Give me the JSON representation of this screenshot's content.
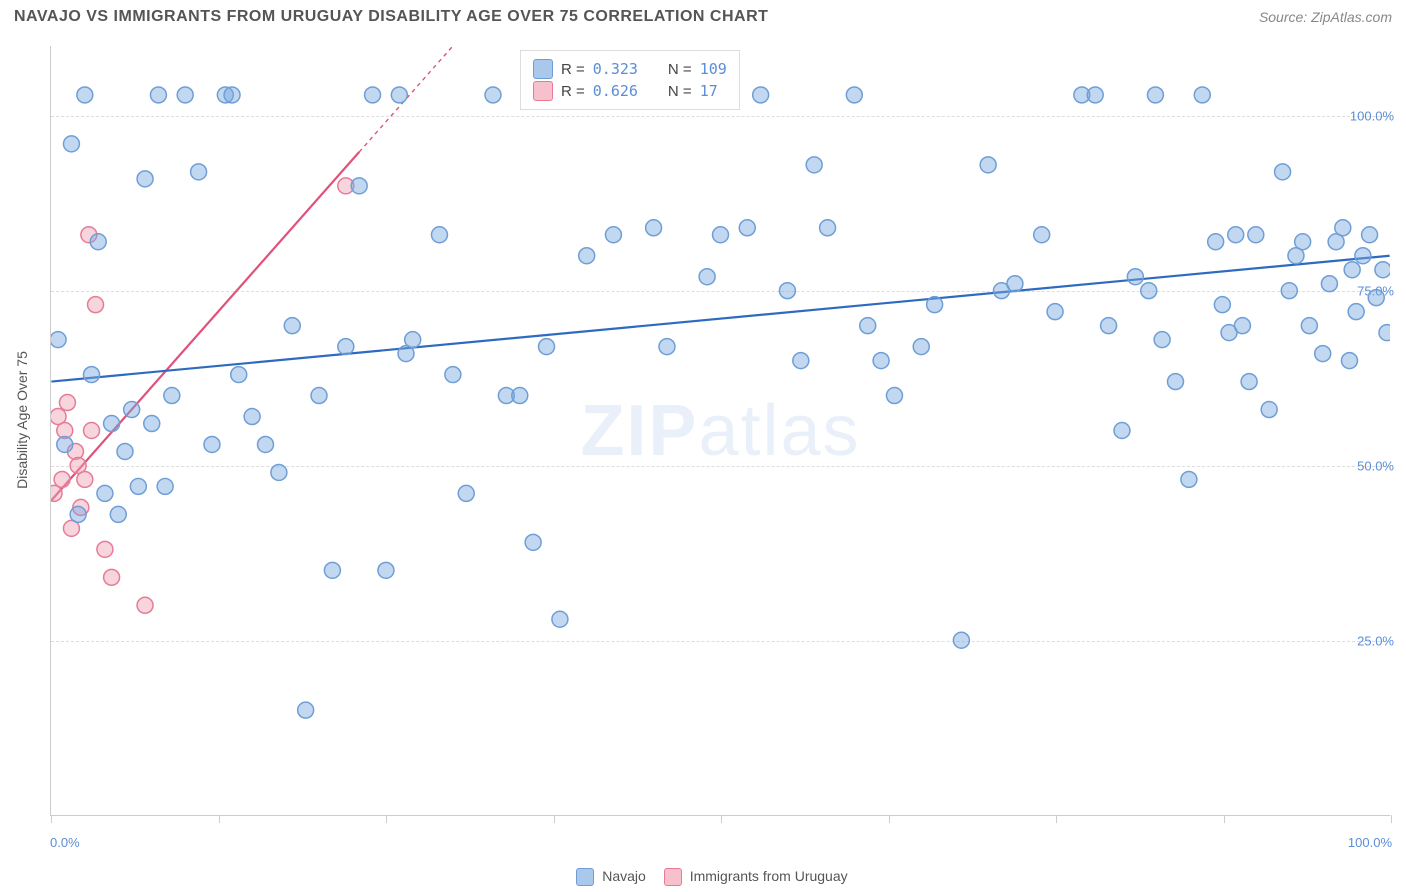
{
  "header": {
    "title": "NAVAJO VS IMMIGRANTS FROM URUGUAY DISABILITY AGE OVER 75 CORRELATION CHART",
    "source": "Source: ZipAtlas.com"
  },
  "axis": {
    "y_title": "Disability Age Over 75",
    "x_min": 0,
    "x_max": 100,
    "y_min": 0,
    "y_max": 110,
    "y_ticks": [
      25,
      50,
      75,
      100
    ],
    "y_tick_labels": [
      "25.0%",
      "50.0%",
      "75.0%",
      "100.0%"
    ],
    "x_ticks": [
      0,
      12.5,
      25,
      37.5,
      50,
      62.5,
      75,
      87.5,
      100
    ],
    "x_end_labels": {
      "left": "0.0%",
      "right": "100.0%"
    }
  },
  "styling": {
    "background": "#ffffff",
    "grid_color": "#dddddd",
    "axis_color": "#cccccc",
    "tick_label_color": "#5b8dd6",
    "title_color": "#555555",
    "marker_radius": 8,
    "marker_stroke_width": 1.5,
    "line_width": 2.2
  },
  "watermark": {
    "text_bold": "ZIP",
    "text_thin": "atlas"
  },
  "legend_top": {
    "rows": [
      {
        "swatch_fill": "#a9c8ec",
        "swatch_stroke": "#6f9ed6",
        "r_label": "R =",
        "r_value": "0.323",
        "n_label": "N =",
        "n_value": "109"
      },
      {
        "swatch_fill": "#f6c0cc",
        "swatch_stroke": "#e77b97",
        "r_label": "R =",
        "r_value": "0.626",
        "n_label": "N =",
        "n_value": " 17"
      }
    ]
  },
  "bottom_legend": {
    "items": [
      {
        "swatch_fill": "#a9c8ec",
        "swatch_stroke": "#6f9ed6",
        "label": "Navajo"
      },
      {
        "swatch_fill": "#f6c0cc",
        "swatch_stroke": "#e77b97",
        "label": "Immigrants from Uruguay"
      }
    ]
  },
  "series": {
    "navajo": {
      "color_fill": "rgba(120,168,224,0.45)",
      "color_stroke": "#6f9ed6",
      "trend": {
        "x1": 0,
        "y1": 62,
        "x2": 100,
        "y2": 80,
        "color": "#2e6bc0"
      },
      "points": [
        [
          0.5,
          68
        ],
        [
          1,
          53
        ],
        [
          1.5,
          96
        ],
        [
          2,
          43
        ],
        [
          2.5,
          103
        ],
        [
          3,
          63
        ],
        [
          3.5,
          82
        ],
        [
          4,
          46
        ],
        [
          4.5,
          56
        ],
        [
          5,
          43
        ],
        [
          5.5,
          52
        ],
        [
          6,
          58
        ],
        [
          6.5,
          47
        ],
        [
          7,
          91
        ],
        [
          7.5,
          56
        ],
        [
          8,
          103
        ],
        [
          8.5,
          47
        ],
        [
          9,
          60
        ],
        [
          10,
          103
        ],
        [
          11,
          92
        ],
        [
          12,
          53
        ],
        [
          13,
          103
        ],
        [
          13.5,
          103
        ],
        [
          14,
          63
        ],
        [
          15,
          57
        ],
        [
          16,
          53
        ],
        [
          17,
          49
        ],
        [
          18,
          70
        ],
        [
          19,
          15
        ],
        [
          20,
          60
        ],
        [
          21,
          35
        ],
        [
          22,
          67
        ],
        [
          23,
          90
        ],
        [
          24,
          103
        ],
        [
          25,
          35
        ],
        [
          26,
          103
        ],
        [
          26.5,
          66
        ],
        [
          27,
          68
        ],
        [
          29,
          83
        ],
        [
          30,
          63
        ],
        [
          31,
          46
        ],
        [
          33,
          103
        ],
        [
          34,
          60
        ],
        [
          35,
          60
        ],
        [
          36,
          39
        ],
        [
          37,
          67
        ],
        [
          38,
          28
        ],
        [
          40,
          80
        ],
        [
          42,
          83
        ],
        [
          43,
          103
        ],
        [
          45,
          84
        ],
        [
          46,
          67
        ],
        [
          48,
          103
        ],
        [
          49,
          77
        ],
        [
          50,
          83
        ],
        [
          52,
          84
        ],
        [
          53,
          103
        ],
        [
          55,
          75
        ],
        [
          56,
          65
        ],
        [
          57,
          93
        ],
        [
          58,
          84
        ],
        [
          60,
          103
        ],
        [
          61,
          70
        ],
        [
          62,
          65
        ],
        [
          63,
          60
        ],
        [
          65,
          67
        ],
        [
          66,
          73
        ],
        [
          68,
          25
        ],
        [
          70,
          93
        ],
        [
          71,
          75
        ],
        [
          72,
          76
        ],
        [
          74,
          83
        ],
        [
          75,
          72
        ],
        [
          77,
          103
        ],
        [
          78,
          103
        ],
        [
          80,
          55
        ],
        [
          81,
          77
        ],
        [
          82,
          75
        ],
        [
          82.5,
          103
        ],
        [
          83,
          68
        ],
        [
          84,
          62
        ],
        [
          85,
          48
        ],
        [
          86,
          103
        ],
        [
          87,
          82
        ],
        [
          87.5,
          73
        ],
        [
          88,
          69
        ],
        [
          89,
          70
        ],
        [
          89.5,
          62
        ],
        [
          90,
          83
        ],
        [
          91,
          58
        ],
        [
          92,
          92
        ],
        [
          92.5,
          75
        ],
        [
          93,
          80
        ],
        [
          94,
          70
        ],
        [
          95,
          66
        ],
        [
          95.5,
          76
        ],
        [
          96,
          82
        ],
        [
          96.5,
          84
        ],
        [
          97,
          65
        ],
        [
          97.5,
          72
        ],
        [
          98,
          80
        ],
        [
          98.5,
          83
        ],
        [
          99,
          74
        ],
        [
          99.5,
          78
        ],
        [
          99.8,
          69
        ],
        [
          97.2,
          78
        ],
        [
          93.5,
          82
        ],
        [
          88.5,
          83
        ],
        [
          79,
          70
        ]
      ]
    },
    "uruguay": {
      "color_fill": "rgba(240,160,180,0.45)",
      "color_stroke": "#e77b97",
      "trend": {
        "x1": 0,
        "y1": 45,
        "x2": 30,
        "y2": 110,
        "dash_after_x": 23,
        "color": "#e0527a"
      },
      "points": [
        [
          0.2,
          46
        ],
        [
          0.5,
          57
        ],
        [
          0.8,
          48
        ],
        [
          1,
          55
        ],
        [
          1.2,
          59
        ],
        [
          1.5,
          41
        ],
        [
          1.8,
          52
        ],
        [
          2,
          50
        ],
        [
          2.2,
          44
        ],
        [
          2.5,
          48
        ],
        [
          2.8,
          83
        ],
        [
          3,
          55
        ],
        [
          3.3,
          73
        ],
        [
          4,
          38
        ],
        [
          4.5,
          34
        ],
        [
          7,
          30
        ],
        [
          22,
          90
        ]
      ]
    }
  }
}
